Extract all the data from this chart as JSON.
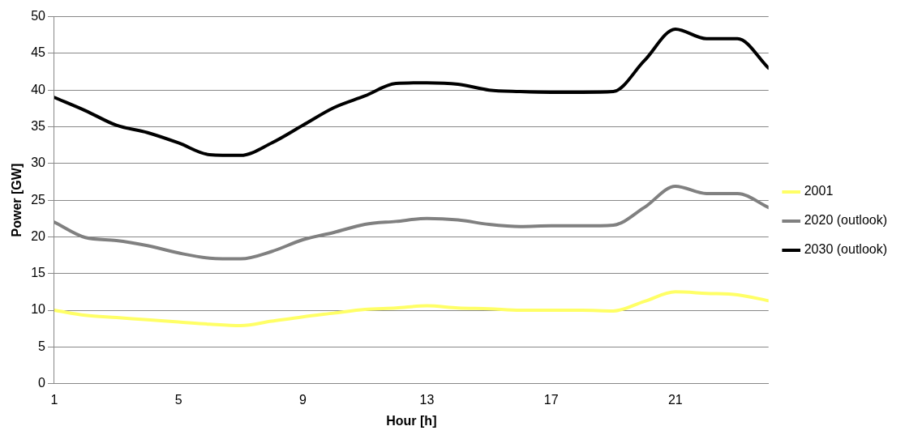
{
  "chart_data": {
    "type": "line",
    "xlabel": "Hour [h]",
    "ylabel": "Power [GW]",
    "x": [
      1,
      2,
      3,
      4,
      5,
      6,
      7,
      8,
      9,
      10,
      11,
      12,
      13,
      14,
      15,
      16,
      17,
      18,
      19,
      20,
      21,
      22,
      23,
      24
    ],
    "xlim": [
      1,
      24
    ],
    "xticks": [
      1,
      5,
      9,
      13,
      17,
      21
    ],
    "ylim": [
      0,
      50
    ],
    "yticks": [
      0,
      5,
      10,
      15,
      20,
      25,
      30,
      35,
      40,
      45,
      50
    ],
    "grid": "y",
    "legend": "right",
    "marker": "none",
    "line_style": "solid",
    "series": [
      {
        "name": "2001",
        "color": "#ffff66",
        "values": [
          10,
          9.3,
          9,
          8.7,
          8.4,
          8.1,
          7.9,
          8.5,
          9.1,
          9.6,
          10.1,
          10.3,
          10.6,
          10.3,
          10.2,
          10,
          10,
          10,
          9.9,
          11.2,
          12.5,
          12.3,
          12.1,
          11.3
        ]
      },
      {
        "name": "2020 (outlook)",
        "color": "#808080",
        "values": [
          22,
          19.9,
          19.5,
          18.8,
          17.8,
          17.1,
          17,
          18,
          19.6,
          20.6,
          21.7,
          22.1,
          22.5,
          22.3,
          21.7,
          21.4,
          21.5,
          21.5,
          21.6,
          24,
          26.9,
          25.9,
          25.9,
          24
        ]
      },
      {
        "name": "2030 (outlook)",
        "color": "#000000",
        "values": [
          39,
          37.2,
          35.2,
          34.2,
          32.8,
          31.2,
          31.1,
          32.8,
          35.2,
          37.6,
          39.2,
          40.9,
          41,
          40.8,
          40,
          39.8,
          39.7,
          39.7,
          39.8,
          44,
          48.3,
          47,
          47,
          43
        ]
      }
    ]
  }
}
